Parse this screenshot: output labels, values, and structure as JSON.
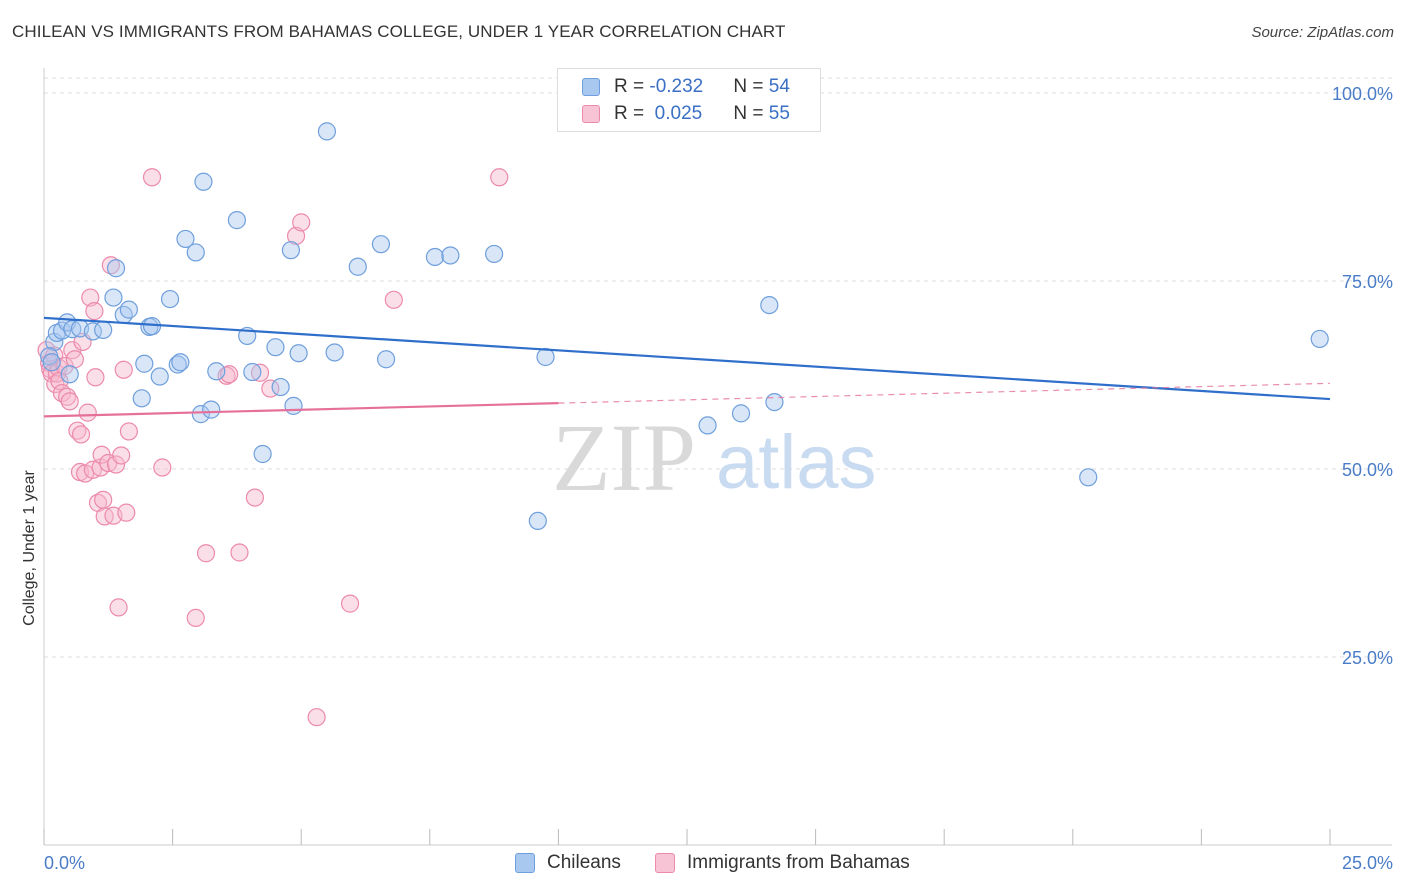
{
  "title": "CHILEAN VS IMMIGRANTS FROM BAHAMAS COLLEGE, UNDER 1 YEAR CORRELATION CHART",
  "source": "Source: ZipAtlas.com",
  "watermark": {
    "zip": "ZIP",
    "atlas": "atlas"
  },
  "legend": {
    "rows": [
      {
        "r_label": "R = ",
        "r_value": "-0.232",
        "n_label": "N = ",
        "n_value": "54"
      },
      {
        "r_label": "R = ",
        "r_value": " 0.025",
        "n_label": "N = ",
        "n_value": "55"
      }
    ]
  },
  "bottom_legend": {
    "series1": "Chileans",
    "series2": "Immigrants from Bahamas"
  },
  "colors": {
    "blue_fill": "#a9c8ef",
    "blue_stroke": "#6f9fdc",
    "blue_line": "#2f6fcb",
    "pink_fill": "#f6b9cc",
    "pink_stroke": "#ec8aab",
    "pink_line": "#e5719a",
    "tick_text": "#4a7cc7",
    "grid": "#dddddd"
  },
  "chart_data": {
    "type": "scatter",
    "title": "CHILEAN VS IMMIGRANTS FROM BAHAMAS COLLEGE, UNDER 1 YEAR CORRELATION CHART",
    "xlabel": "",
    "ylabel": "College, Under 1 year",
    "xlim": [
      0,
      25
    ],
    "ylim": [
      0,
      102
    ],
    "x_tick_labels": [
      {
        "value": 0,
        "label": "0.0%"
      },
      {
        "value": 25,
        "label": "25.0%"
      }
    ],
    "y_tick_labels": [
      {
        "value": 100,
        "label": "100.0%"
      },
      {
        "value": 75,
        "label": "75.0%"
      },
      {
        "value": 50,
        "label": "50.0%"
      },
      {
        "value": 25,
        "label": "25.0%"
      }
    ],
    "grid": true,
    "series": [
      {
        "name": "Chileans",
        "color": "blue",
        "R": -0.232,
        "N": 54,
        "trend": {
          "x0": 0,
          "y0": 70.1,
          "x1": 25,
          "y1": 59.3,
          "dashed_from": null
        },
        "points": [
          [
            0.2,
            66.9
          ],
          [
            0.25,
            68.1
          ],
          [
            0.35,
            68.4
          ],
          [
            0.45,
            69.5
          ],
          [
            0.55,
            68.6
          ],
          [
            0.7,
            68.7
          ],
          [
            0.95,
            68.3
          ],
          [
            1.15,
            68.5
          ],
          [
            1.35,
            72.8
          ],
          [
            1.4,
            76.7
          ],
          [
            1.55,
            70.5
          ],
          [
            1.65,
            71.2
          ],
          [
            1.9,
            59.4
          ],
          [
            1.95,
            64.0
          ],
          [
            2.05,
            68.9
          ],
          [
            2.1,
            69.0
          ],
          [
            2.25,
            62.3
          ],
          [
            2.45,
            72.6
          ],
          [
            2.6,
            63.9
          ],
          [
            2.65,
            64.2
          ],
          [
            2.75,
            80.6
          ],
          [
            2.95,
            78.8
          ],
          [
            3.05,
            57.3
          ],
          [
            3.1,
            88.2
          ],
          [
            3.25,
            57.9
          ],
          [
            3.35,
            63.0
          ],
          [
            3.75,
            83.1
          ],
          [
            3.95,
            67.7
          ],
          [
            4.05,
            62.9
          ],
          [
            4.25,
            52.0
          ],
          [
            4.5,
            66.2
          ],
          [
            4.6,
            60.9
          ],
          [
            4.8,
            79.1
          ],
          [
            4.85,
            58.4
          ],
          [
            4.95,
            65.4
          ],
          [
            5.5,
            94.9
          ],
          [
            5.65,
            65.5
          ],
          [
            6.1,
            76.9
          ],
          [
            6.55,
            79.9
          ],
          [
            6.65,
            64.6
          ],
          [
            7.6,
            78.2
          ],
          [
            7.9,
            78.4
          ],
          [
            8.75,
            78.6
          ],
          [
            9.6,
            43.1
          ],
          [
            9.75,
            64.9
          ],
          [
            12.9,
            55.8
          ],
          [
            13.55,
            57.4
          ],
          [
            14.1,
            71.8
          ],
          [
            14.2,
            58.9
          ],
          [
            20.3,
            48.9
          ],
          [
            24.8,
            67.3
          ],
          [
            0.1,
            65.0
          ],
          [
            0.15,
            64.2
          ],
          [
            0.5,
            62.6
          ]
        ]
      },
      {
        "name": "Immigrants from Bahamas",
        "color": "pink",
        "R": 0.025,
        "N": 55,
        "trend": {
          "x0": 0,
          "y0": 57.0,
          "x1": 25,
          "y1": 61.4,
          "dashed_from": 10
        },
        "points": [
          [
            0.05,
            65.8
          ],
          [
            0.1,
            64.1
          ],
          [
            0.12,
            63.3
          ],
          [
            0.15,
            62.7
          ],
          [
            0.2,
            65.1
          ],
          [
            0.22,
            61.3
          ],
          [
            0.25,
            62.7
          ],
          [
            0.28,
            63.5
          ],
          [
            0.3,
            61.7
          ],
          [
            0.35,
            60.1
          ],
          [
            0.4,
            63.7
          ],
          [
            0.45,
            59.6
          ],
          [
            0.5,
            59.0
          ],
          [
            0.55,
            65.8
          ],
          [
            0.6,
            64.6
          ],
          [
            0.65,
            55.1
          ],
          [
            0.7,
            49.6
          ],
          [
            0.72,
            54.6
          ],
          [
            0.75,
            66.9
          ],
          [
            0.8,
            49.4
          ],
          [
            0.85,
            57.5
          ],
          [
            0.9,
            72.8
          ],
          [
            0.95,
            49.9
          ],
          [
            0.98,
            71.0
          ],
          [
            1.0,
            62.2
          ],
          [
            1.05,
            45.5
          ],
          [
            1.1,
            50.2
          ],
          [
            1.12,
            51.9
          ],
          [
            1.15,
            45.9
          ],
          [
            1.18,
            43.7
          ],
          [
            1.25,
            50.8
          ],
          [
            1.3,
            77.1
          ],
          [
            1.35,
            43.8
          ],
          [
            1.4,
            50.6
          ],
          [
            1.45,
            31.6
          ],
          [
            1.5,
            51.8
          ],
          [
            1.55,
            63.2
          ],
          [
            1.6,
            44.2
          ],
          [
            1.65,
            55.0
          ],
          [
            2.1,
            88.8
          ],
          [
            2.3,
            50.2
          ],
          [
            2.95,
            30.2
          ],
          [
            3.15,
            38.8
          ],
          [
            3.55,
            62.4
          ],
          [
            3.8,
            38.9
          ],
          [
            4.1,
            46.2
          ],
          [
            4.2,
            62.8
          ],
          [
            4.4,
            60.7
          ],
          [
            4.9,
            81.0
          ],
          [
            5.0,
            82.8
          ],
          [
            5.3,
            17.0
          ],
          [
            5.95,
            32.1
          ],
          [
            6.8,
            72.5
          ],
          [
            8.85,
            88.8
          ],
          [
            3.6,
            62.6
          ]
        ]
      }
    ]
  }
}
